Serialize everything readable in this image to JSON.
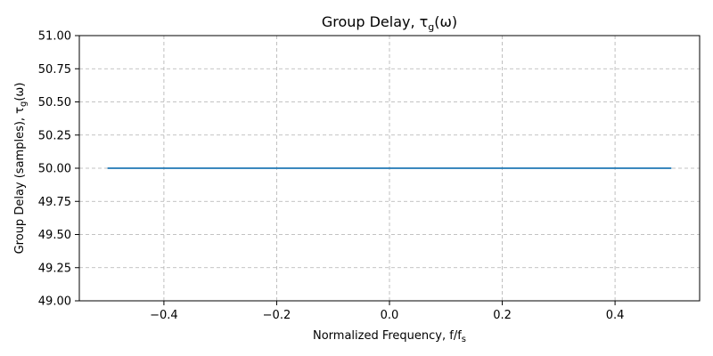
{
  "chart_data": {
    "type": "line",
    "title": "Group Delay, τ",
    "title_sub": "g",
    "title_tail": "(ω)",
    "xlabel": "Normalized Frequency, f/f",
    "xlabel_sub": "s",
    "ylabel": "Group Delay (samples), τ",
    "ylabel_sub": "g",
    "ylabel_tail": "(ω)",
    "xlim": [
      -0.55,
      0.55
    ],
    "ylim": [
      49.0,
      51.0
    ],
    "xticks": [
      -0.4,
      -0.2,
      0.0,
      0.2,
      0.4
    ],
    "xtick_labels": [
      "−0.4",
      "−0.2",
      "0.0",
      "0.2",
      "0.4"
    ],
    "yticks": [
      49.0,
      49.25,
      49.5,
      49.75,
      50.0,
      50.25,
      50.5,
      50.75,
      51.0
    ],
    "ytick_labels": [
      "49.00",
      "49.25",
      "49.50",
      "49.75",
      "50.00",
      "50.25",
      "50.50",
      "50.75",
      "51.00"
    ],
    "grid": true,
    "series": [
      {
        "x": [
          -0.5,
          -0.4,
          -0.3,
          -0.2,
          -0.1,
          0.0,
          0.1,
          0.2,
          0.3,
          0.4,
          0.5
        ],
        "y": [
          50.0,
          50.0,
          50.0,
          50.0,
          50.0,
          50.0,
          50.0,
          50.0,
          50.0,
          50.0,
          50.0
        ],
        "color": "#1f77b4"
      }
    ]
  }
}
